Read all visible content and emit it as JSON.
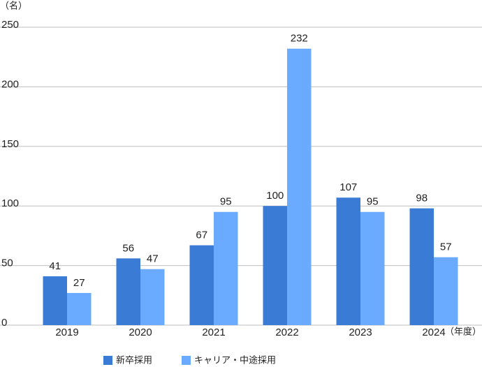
{
  "chart_data": {
    "type": "bar",
    "y_label": "（名）",
    "x_label": "（年度）",
    "categories": [
      "2019",
      "2020",
      "2021",
      "2022",
      "2023",
      "2024"
    ],
    "series": [
      {
        "name": "新卒採用",
        "color": "#3a7bd5",
        "values": [
          41,
          56,
          67,
          100,
          107,
          98
        ]
      },
      {
        "name": "キャリア・中途採用",
        "color": "#6aabff",
        "values": [
          27,
          47,
          95,
          232,
          95,
          57
        ]
      }
    ],
    "ylim": [
      0,
      250
    ],
    "yticks": [
      0,
      50,
      100,
      150,
      200,
      250
    ],
    "grid": true
  }
}
